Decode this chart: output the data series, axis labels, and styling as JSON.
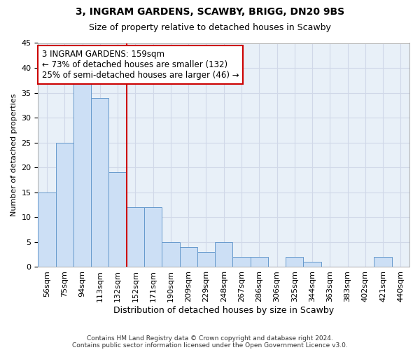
{
  "title": "3, INGRAM GARDENS, SCAWBY, BRIGG, DN20 9BS",
  "subtitle": "Size of property relative to detached houses in Scawby",
  "xlabel": "Distribution of detached houses by size in Scawby",
  "ylabel": "Number of detached properties",
  "bar_labels": [
    "56sqm",
    "75sqm",
    "94sqm",
    "113sqm",
    "132sqm",
    "152sqm",
    "171sqm",
    "190sqm",
    "209sqm",
    "229sqm",
    "248sqm",
    "267sqm",
    "286sqm",
    "306sqm",
    "325sqm",
    "344sqm",
    "363sqm",
    "383sqm",
    "402sqm",
    "421sqm",
    "440sqm"
  ],
  "bar_values": [
    15,
    25,
    37,
    34,
    19,
    12,
    12,
    5,
    4,
    3,
    5,
    2,
    2,
    0,
    2,
    1,
    0,
    0,
    0,
    2,
    0
  ],
  "bar_color": "#ccdff5",
  "bar_edge_color": "#6699cc",
  "vline_x": 5,
  "vline_color": "#cc0000",
  "annotation_title": "3 INGRAM GARDENS: 159sqm",
  "annotation_line1": "← 73% of detached houses are smaller (132)",
  "annotation_line2": "25% of semi-detached houses are larger (46) →",
  "annotation_box_color": "#ffffff",
  "annotation_box_edge": "#cc0000",
  "ylim": [
    0,
    45
  ],
  "yticks": [
    0,
    5,
    10,
    15,
    20,
    25,
    30,
    35,
    40,
    45
  ],
  "footer1": "Contains HM Land Registry data © Crown copyright and database right 2024.",
  "footer2": "Contains public sector information licensed under the Open Government Licence v3.0.",
  "background_color": "#ffffff",
  "grid_color": "#d0d8e8",
  "title_fontsize": 10,
  "subtitle_fontsize": 9,
  "xlabel_fontsize": 9,
  "ylabel_fontsize": 8,
  "tick_fontsize": 8,
  "annotation_fontsize": 8.5,
  "footer_fontsize": 6.5
}
